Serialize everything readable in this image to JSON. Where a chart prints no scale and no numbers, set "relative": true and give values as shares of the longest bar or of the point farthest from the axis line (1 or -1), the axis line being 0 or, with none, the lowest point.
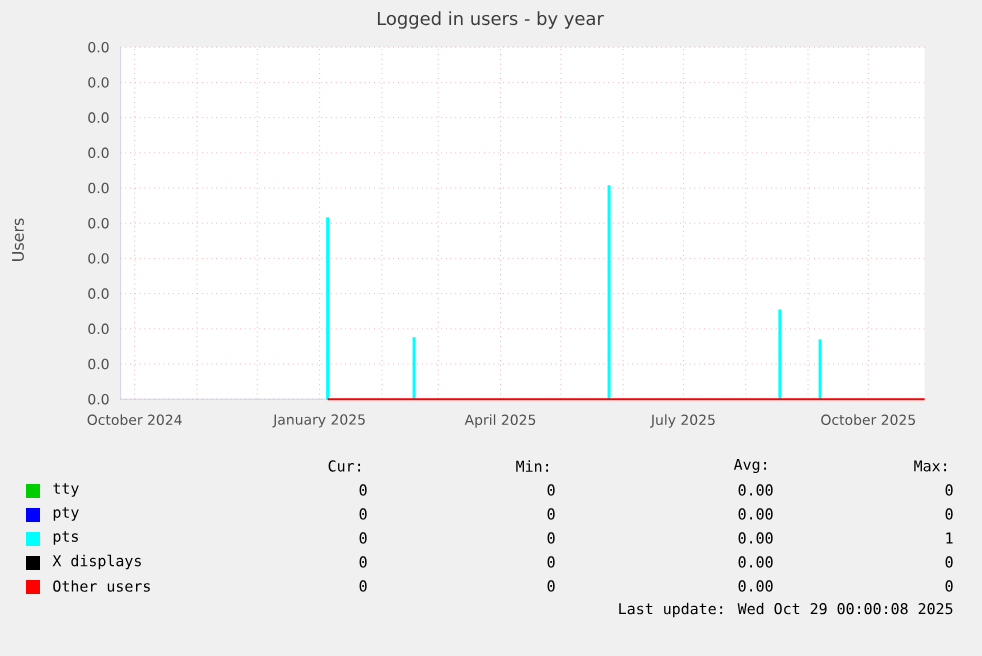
{
  "chart_data": {
    "type": "bar",
    "title": "Logged in users - by year",
    "ylabel": "Users",
    "relative": true,
    "xlim": [
      "2024-09-24",
      "2025-10-29"
    ],
    "xticks": [
      {
        "value": "2024-10-01",
        "label": "October 2024"
      },
      {
        "value": "2024-11-01",
        "label": null
      },
      {
        "value": "2024-12-01",
        "label": null
      },
      {
        "value": "2025-01-01",
        "label": "January 2025"
      },
      {
        "value": "2025-02-01",
        "label": null
      },
      {
        "value": "2025-03-01",
        "label": null
      },
      {
        "value": "2025-04-01",
        "label": "April 2025"
      },
      {
        "value": "2025-05-01",
        "label": null
      },
      {
        "value": "2025-06-01",
        "label": null
      },
      {
        "value": "2025-07-01",
        "label": "July 2025"
      },
      {
        "value": "2025-08-01",
        "label": null
      },
      {
        "value": "2025-09-01",
        "label": null
      },
      {
        "value": "2025-10-01",
        "label": "October 2025"
      }
    ],
    "grid": true,
    "legend": "bottom",
    "series": [
      {
        "name": "tty",
        "color": "#00cc00"
      },
      {
        "name": "pty",
        "color": "#0000ff"
      },
      {
        "name": "pts",
        "color": "#00ffff",
        "x": [
          "2025-01-05",
          "2025-02-17",
          "2025-05-25",
          "2025-08-18",
          "2025-09-07"
        ],
        "values": [
          0.85,
          0.29,
          1,
          0.42,
          0.28
        ]
      },
      {
        "name": "X displays",
        "color": "#000000"
      },
      {
        "name": "Other users",
        "color": "#ff0000",
        "type": "line",
        "x": [
          "2025-01-05",
          "2025-10-29"
        ],
        "values": [
          0,
          0
        ]
      }
    ],
    "annotations": [
      "Cur:",
      "Min:",
      "Avg:",
      "Max:",
      "0",
      "0",
      "0.00",
      "0",
      "0",
      "0",
      "0.00",
      "0",
      "0",
      "0",
      "0.00",
      "1",
      "0",
      "0",
      "0.00",
      "0",
      "0",
      "0",
      "0.00",
      "0",
      "Last update: Wed Oct 29 00:00:08 2025",
      "0.0",
      "0.0",
      "0.0",
      "0.0",
      "0.0",
      "0.0",
      "0.0",
      "0.0",
      "0.0",
      "0.0",
      "0.0"
    ]
  }
}
